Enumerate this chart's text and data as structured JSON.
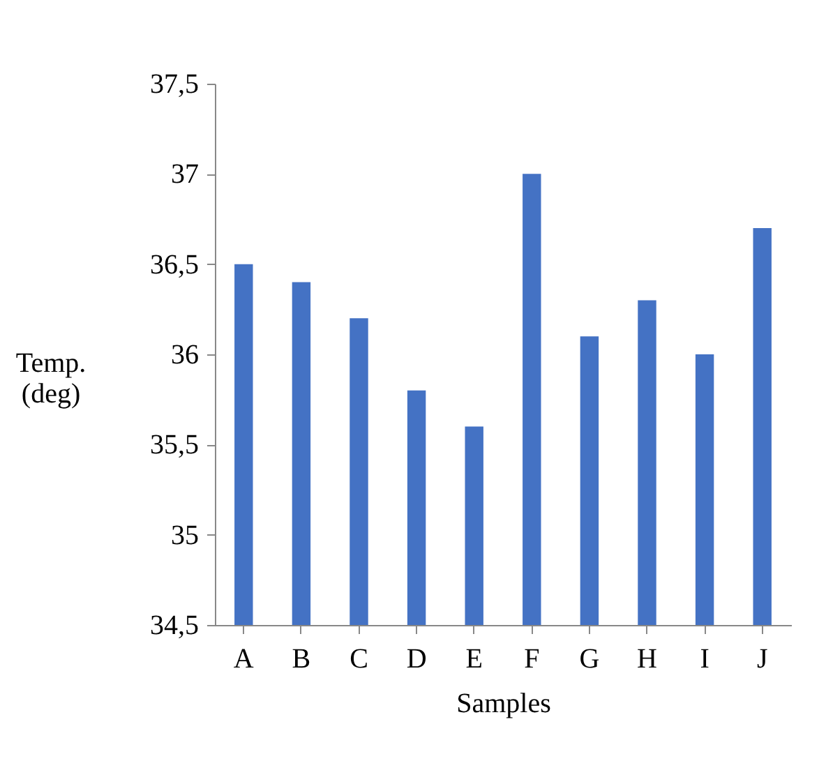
{
  "chart_data": {
    "type": "bar",
    "xlabel": "Samples",
    "ylabel": "Temp. (deg)",
    "categories": [
      "A",
      "B",
      "C",
      "D",
      "E",
      "F",
      "G",
      "H",
      "I",
      "J"
    ],
    "values": [
      36.5,
      36.4,
      36.2,
      35.8,
      35.6,
      37,
      36.1,
      36.3,
      36,
      36.7
    ],
    "color": "#4472c4",
    "ylim": [
      34.5,
      37.5
    ],
    "yticks": [
      {
        "value": 34.5,
        "label": "34,5"
      },
      35,
      {
        "value": 35.5,
        "label": "35,5"
      },
      36,
      {
        "value": 36.5,
        "label": "36,5"
      },
      37,
      {
        "value": 37.5,
        "label": "37,5"
      }
    ],
    "grid": false
  }
}
